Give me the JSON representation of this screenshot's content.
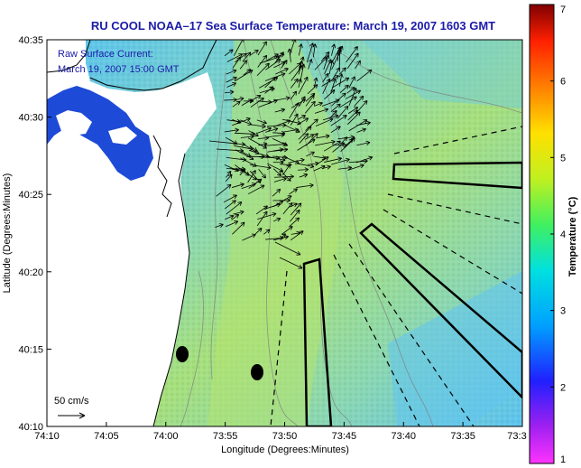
{
  "title": "RU COOL  NOAA–17  Sea Surface Temperature:  March 19, 2007 1603 GMT",
  "annotation": {
    "line1": "Raw Surface Current:",
    "line2": "March 19, 2007 15:00 GMT"
  },
  "scale_label": "50 cm/s",
  "x_axis": {
    "label": "Longitude (Degrees:Minutes)",
    "ticks": [
      "74:10",
      "74:05",
      "74:00",
      "73:55",
      "73:50",
      "73:45",
      "73:40",
      "73:35",
      "73:3"
    ]
  },
  "y_axis": {
    "label": "Latitude (Degrees:Minutes)",
    "ticks": [
      "40:35",
      "40:30",
      "40:25",
      "40:20",
      "40:15",
      "40:10"
    ]
  },
  "colorbar": {
    "label": "Temperature (°C)",
    "ticks": [
      "7",
      "6",
      "5",
      "4",
      "3",
      "2",
      "1"
    ],
    "range": [
      1,
      7
    ],
    "colors": [
      "#ff33ff",
      "#a020f0",
      "#3040ff",
      "#00a0ff",
      "#00e0e0",
      "#40f060",
      "#c0f020",
      "#ffe000",
      "#ff8000",
      "#ff2000",
      "#900000"
    ]
  },
  "map": {
    "land_color": "#ffffff",
    "water_palette": [
      "#5fc8e8",
      "#7ed6c8",
      "#a8e07a",
      "#9ce0a0",
      "#60c0f0"
    ],
    "cold_patch_color": "#1e4ad8",
    "vector_color": "#000000",
    "contour_color": "#808080"
  }
}
